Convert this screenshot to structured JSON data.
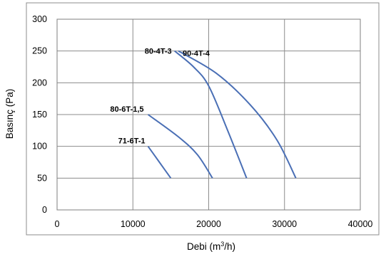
{
  "chart_data": {
    "type": "line",
    "title": "",
    "xlabel": "Debi (m",
    "xlabel_sup": "3",
    "xlabel_end": "/h)",
    "ylabel": "Basınç (Pa)",
    "xlim": [
      0,
      40000
    ],
    "ylim": [
      0,
      300
    ],
    "x_ticks": [
      0,
      10000,
      20000,
      30000,
      40000
    ],
    "y_ticks": [
      0,
      50,
      100,
      150,
      200,
      250,
      300
    ],
    "x_tick_labels": [
      "0",
      "10000",
      "20000",
      "30000",
      "40000"
    ],
    "y_tick_labels": [
      "0",
      "50",
      "100",
      "150",
      "200",
      "250",
      "300"
    ],
    "grid": true,
    "legend": "none",
    "series_color": "#4a6fb5",
    "series": [
      {
        "name": "71-6T-1",
        "x": [
          12000,
          13500,
          15000
        ],
        "y": [
          100,
          75,
          50
        ]
      },
      {
        "name": "80-6T-1,5",
        "x": [
          12000,
          16000,
          18500,
          20500
        ],
        "y": [
          150,
          115,
          87,
          50
        ]
      },
      {
        "name": "80-4T-3",
        "x": [
          15500,
          18000,
          20000,
          22500,
          25000
        ],
        "y": [
          250,
          225,
          195,
          125,
          50
        ]
      },
      {
        "name": "90-4T-4",
        "x": [
          16000,
          21000,
          25500,
          29000,
          31500
        ],
        "y": [
          250,
          215,
          165,
          110,
          50
        ]
      }
    ]
  }
}
